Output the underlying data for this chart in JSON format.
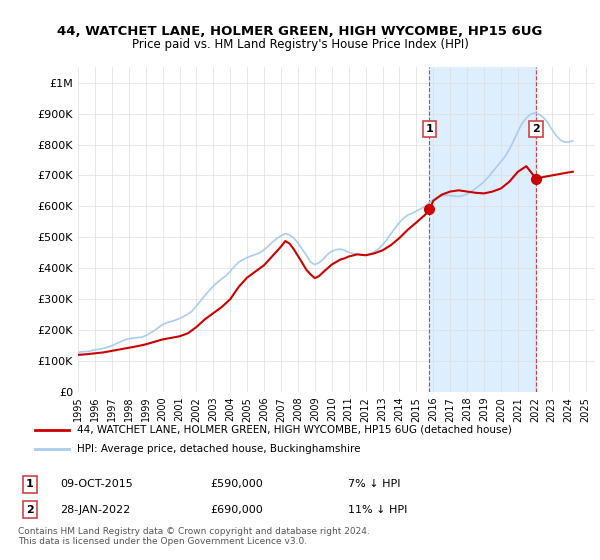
{
  "title": "44, WATCHET LANE, HOLMER GREEN, HIGH WYCOMBE, HP15 6UG",
  "subtitle": "Price paid vs. HM Land Registry's House Price Index (HPI)",
  "legend_line1": "44, WATCHET LANE, HOLMER GREEN, HIGH WYCOMBE, HP15 6UG (detached house)",
  "legend_line2": "HPI: Average price, detached house, Buckinghamshire",
  "footnote": "Contains HM Land Registry data © Crown copyright and database right 2024.\nThis data is licensed under the Open Government Licence v3.0.",
  "sale1_label": "1",
  "sale1_date": "09-OCT-2015",
  "sale1_price": "£590,000",
  "sale1_hpi": "7% ↓ HPI",
  "sale2_label": "2",
  "sale2_date": "28-JAN-2022",
  "sale2_price": "£690,000",
  "sale2_hpi": "11% ↓ HPI",
  "ylim": [
    0,
    1050000
  ],
  "yticks": [
    0,
    100000,
    200000,
    300000,
    400000,
    500000,
    600000,
    700000,
    800000,
    900000,
    1000000
  ],
  "ytick_labels": [
    "£0",
    "£100K",
    "£200K",
    "£300K",
    "£400K",
    "£500K",
    "£600K",
    "£700K",
    "£800K",
    "£900K",
    "£1M"
  ],
  "sale1_x": 2015.77,
  "sale1_y": 590000,
  "sale2_x": 2022.07,
  "sale2_y": 690000,
  "vline1_x": 2015.77,
  "vline2_x": 2022.07,
  "bg_shade1_x1": 2015.77,
  "bg_shade1_x2": 2022.07,
  "red_line_color": "#cc0000",
  "blue_line_color": "#aaccee",
  "shade_color": "#ddeeff",
  "hpi_years": [
    1995,
    1995.25,
    1995.5,
    1995.75,
    1996,
    1996.25,
    1996.5,
    1996.75,
    1997,
    1997.25,
    1997.5,
    1997.75,
    1998,
    1998.25,
    1998.5,
    1998.75,
    1999,
    1999.25,
    1999.5,
    1999.75,
    2000,
    2000.25,
    2000.5,
    2000.75,
    2001,
    2001.25,
    2001.5,
    2001.75,
    2002,
    2002.25,
    2002.5,
    2002.75,
    2003,
    2003.25,
    2003.5,
    2003.75,
    2004,
    2004.25,
    2004.5,
    2004.75,
    2005,
    2005.25,
    2005.5,
    2005.75,
    2006,
    2006.25,
    2006.5,
    2006.75,
    2007,
    2007.25,
    2007.5,
    2007.75,
    2008,
    2008.25,
    2008.5,
    2008.75,
    2009,
    2009.25,
    2009.5,
    2009.75,
    2010,
    2010.25,
    2010.5,
    2010.75,
    2011,
    2011.25,
    2011.5,
    2011.75,
    2012,
    2012.25,
    2012.5,
    2012.75,
    2013,
    2013.25,
    2013.5,
    2013.75,
    2014,
    2014.25,
    2014.5,
    2014.75,
    2015,
    2015.25,
    2015.5,
    2015.75,
    2016,
    2016.25,
    2016.5,
    2016.75,
    2017,
    2017.25,
    2017.5,
    2017.75,
    2018,
    2018.25,
    2018.5,
    2018.75,
    2019,
    2019.25,
    2019.5,
    2019.75,
    2020,
    2020.25,
    2020.5,
    2020.75,
    2021,
    2021.25,
    2021.5,
    2021.75,
    2022,
    2022.25,
    2022.5,
    2022.75,
    2023,
    2023.25,
    2023.5,
    2023.75,
    2024,
    2024.25
  ],
  "hpi_values": [
    128000,
    130000,
    131000,
    133000,
    136000,
    138000,
    141000,
    145000,
    150000,
    156000,
    162000,
    168000,
    172000,
    174000,
    176000,
    177000,
    182000,
    190000,
    198000,
    208000,
    218000,
    224000,
    228000,
    232000,
    238000,
    244000,
    252000,
    262000,
    278000,
    295000,
    312000,
    328000,
    342000,
    355000,
    366000,
    376000,
    390000,
    406000,
    420000,
    428000,
    435000,
    440000,
    445000,
    450000,
    460000,
    472000,
    485000,
    496000,
    505000,
    512000,
    508000,
    498000,
    482000,
    462000,
    442000,
    420000,
    412000,
    418000,
    430000,
    445000,
    455000,
    460000,
    462000,
    458000,
    452000,
    448000,
    445000,
    444000,
    442000,
    446000,
    453000,
    462000,
    476000,
    492000,
    512000,
    530000,
    548000,
    562000,
    572000,
    578000,
    585000,
    592000,
    600000,
    612000,
    622000,
    630000,
    634000,
    636000,
    635000,
    633000,
    632000,
    635000,
    640000,
    648000,
    658000,
    668000,
    680000,
    695000,
    712000,
    728000,
    745000,
    762000,
    785000,
    812000,
    842000,
    868000,
    886000,
    898000,
    902000,
    898000,
    888000,
    872000,
    850000,
    830000,
    815000,
    808000,
    808000,
    812000
  ],
  "red_years": [
    1995,
    1999,
    2002,
    2004,
    2006,
    2009,
    2011,
    2015.77,
    2022.07,
    2024.25
  ],
  "red_values": [
    120000,
    170000,
    260000,
    370000,
    460000,
    405000,
    430000,
    590000,
    690000,
    710000
  ],
  "xmin": 1995,
  "xmax": 2025.5
}
